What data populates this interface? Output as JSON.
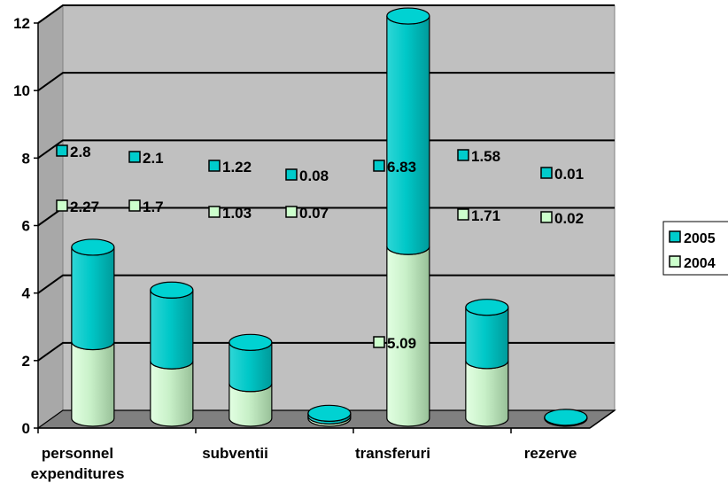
{
  "chart_data": {
    "type": "bar",
    "subtype": "stacked-3d-cylinder",
    "title": "",
    "xlabel": "",
    "ylabel": "",
    "ylim": [
      0,
      12
    ],
    "yticks": [
      "0",
      "2",
      "4",
      "6",
      "8",
      "10",
      "12"
    ],
    "grid": true,
    "legend_position": "right",
    "categories": [
      "personnel expenditures",
      "",
      "subventii",
      "",
      "transferuri",
      "",
      "rezerve"
    ],
    "category_label_lines": [
      [
        "personnel",
        "expenditures"
      ],
      [],
      [
        "subventii"
      ],
      [],
      [
        "transferuri"
      ],
      [],
      [
        "rezerve"
      ]
    ],
    "series": [
      {
        "name": "2004",
        "color": "#CCFFCC",
        "values": [
          2.27,
          1.7,
          1.03,
          0.07,
          5.09,
          1.71,
          0.02
        ],
        "labels": [
          "2.27",
          "1.7",
          "1.03",
          "0.07",
          "5.09",
          "1.71",
          "0.02"
        ]
      },
      {
        "name": "2005",
        "color": "#00CCCC",
        "values": [
          2.8,
          2.1,
          1.22,
          0.08,
          6.83,
          1.58,
          0.01
        ],
        "labels": [
          "2.8",
          "2.1",
          "1.22",
          "0.08",
          "6.83",
          "1.58",
          "0.01"
        ]
      }
    ],
    "legend": [
      "2005",
      "2004"
    ],
    "colors": {
      "wall": "#C0C0C0",
      "floor": "#808080",
      "series_2004": "#CCFFCC",
      "series_2005": "#00CCCC",
      "grid": "#000000"
    }
  }
}
